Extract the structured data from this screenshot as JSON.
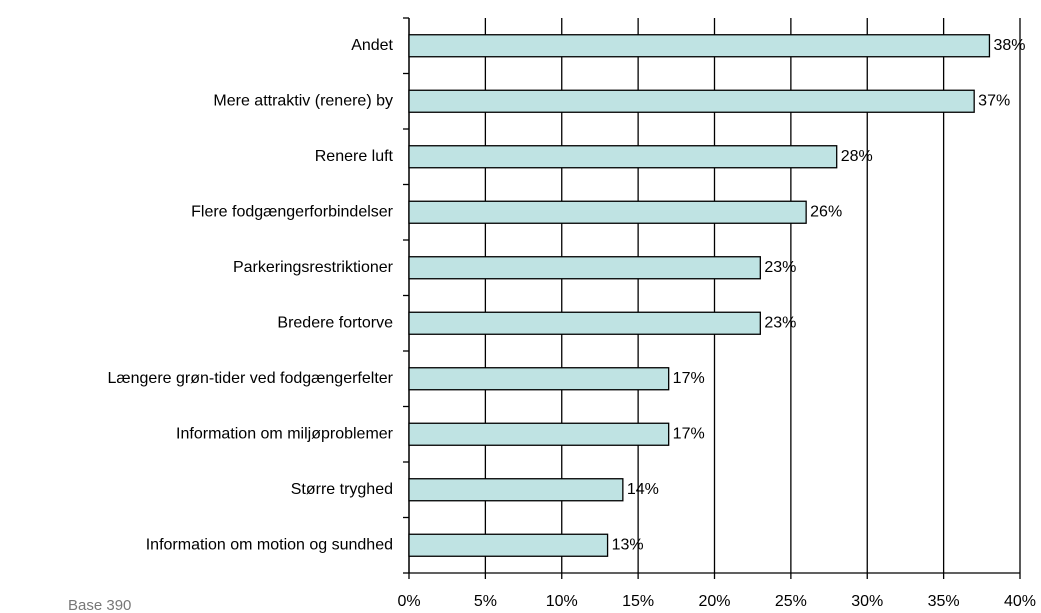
{
  "chart_data": {
    "type": "bar",
    "orientation": "horizontal",
    "categories": [
      "Andet",
      "Mere attraktiv (renere) by",
      "Renere luft",
      "Flere fodgængerforbindelser",
      "Parkeringsrestriktioner",
      "Bredere fortorve",
      "Længere grøn-tider ved fodgængerfelter",
      "Information om miljøproblemer",
      "Større tryghed",
      "Information om motion og sundhed"
    ],
    "values": [
      38,
      37,
      28,
      26,
      23,
      23,
      17,
      17,
      14,
      13
    ],
    "value_labels": [
      "38%",
      "37%",
      "28%",
      "26%",
      "23%",
      "23%",
      "17%",
      "17%",
      "14%",
      "13%"
    ],
    "color": "#bfe3e3",
    "xlim": [
      0,
      40
    ],
    "xticks": [
      {
        "value": 0,
        "label": "0%"
      },
      {
        "value": 5,
        "label": "5%"
      },
      {
        "value": 10,
        "label": "10%"
      },
      {
        "value": 15,
        "label": "15%"
      },
      {
        "value": 20,
        "label": "20%"
      },
      {
        "value": 25,
        "label": "25%"
      },
      {
        "value": 30,
        "label": "30%"
      },
      {
        "value": 35,
        "label": "35%"
      },
      {
        "value": 40,
        "label": "40%"
      }
    ],
    "grid": true,
    "footnote": "Base 390"
  }
}
